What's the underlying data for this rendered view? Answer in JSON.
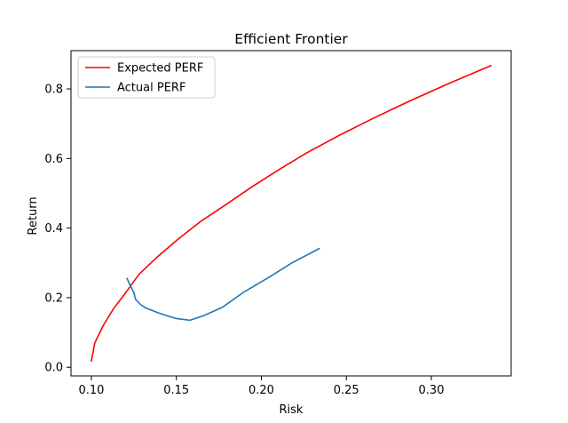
{
  "chart_data": {
    "type": "line",
    "title": "Efficient Frontier",
    "xlabel": "Risk",
    "ylabel": "Return",
    "xlim": [
      0.088,
      0.347
    ],
    "ylim": [
      -0.025,
      0.91
    ],
    "xticks": [
      0.1,
      0.15,
      0.2,
      0.25,
      0.3
    ],
    "xtick_labels": [
      "0.10",
      "0.15",
      "0.20",
      "0.25",
      "0.30"
    ],
    "yticks": [
      0.0,
      0.2,
      0.4,
      0.6,
      0.8
    ],
    "ytick_labels": [
      "0.0",
      "0.2",
      "0.4",
      "0.6",
      "0.8"
    ],
    "grid": false,
    "legend_position": "top-left",
    "series": [
      {
        "name": "Expected PERF",
        "color": "#ff0000",
        "x": [
          0.1,
          0.102,
          0.107,
          0.113,
          0.12,
          0.128,
          0.139,
          0.151,
          0.164,
          0.179,
          0.194,
          0.21,
          0.227,
          0.246,
          0.266,
          0.288,
          0.311,
          0.335
        ],
        "y": [
          0.018,
          0.07,
          0.12,
          0.168,
          0.213,
          0.267,
          0.318,
          0.368,
          0.418,
          0.467,
          0.517,
          0.567,
          0.617,
          0.667,
          0.716,
          0.767,
          0.817,
          0.867
        ]
      },
      {
        "name": "Actual PERF",
        "color": "#1f77b4",
        "x": [
          0.121,
          0.123,
          0.125,
          0.126,
          0.129,
          0.132,
          0.14,
          0.145,
          0.15,
          0.158,
          0.166,
          0.177,
          0.19,
          0.204,
          0.218,
          0.234
        ],
        "y": [
          0.255,
          0.233,
          0.215,
          0.195,
          0.18,
          0.17,
          0.155,
          0.147,
          0.14,
          0.135,
          0.148,
          0.172,
          0.217,
          0.257,
          0.3,
          0.341
        ]
      }
    ]
  }
}
